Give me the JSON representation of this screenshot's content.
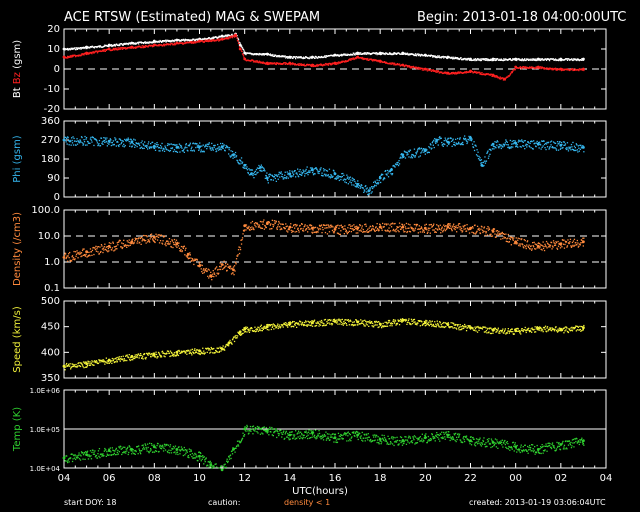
{
  "header": {
    "title": "ACE RTSW (Estimated) MAG & SWEPAM",
    "begin": "Begin: 2013-01-18 04:00:00UTC"
  },
  "footer": {
    "start_doy": "start DOY:  18",
    "caution": "caution:",
    "density_note": "density < 1",
    "created": "created: 2013-01-19 03:06:04UTC"
  },
  "colors": {
    "bt": "#ffffff",
    "bz": "#ff2020",
    "phi": "#35b6ee",
    "density": "#ff8a3d",
    "speed": "#f2f23a",
    "temp": "#2fd02f",
    "axis": "#ffffff"
  },
  "chart_data": {
    "type": "scatter",
    "x_axis": {
      "label": "UTC(hours)",
      "range": [
        4,
        28
      ],
      "tick_labels": [
        "04",
        "06",
        "08",
        "10",
        "12",
        "14",
        "16",
        "18",
        "20",
        "22",
        "00",
        "02",
        "04"
      ]
    },
    "panels": [
      {
        "id": "mag",
        "ylabel_parts": [
          {
            "text": "Bt",
            "color": "#ffffff"
          },
          {
            "text": "Bz",
            "color": "#ff2020"
          },
          {
            "text": "(gsm)",
            "color": "#ffffff"
          }
        ],
        "ylim": [
          -20,
          20
        ],
        "yticks": [
          "-20",
          "-10",
          "0",
          "10",
          "20"
        ],
        "dashed": [
          0
        ],
        "series": [
          {
            "name": "Bt",
            "color": "#ffffff",
            "x": [
              4,
              5,
              6,
              7,
              8,
              9,
              10,
              11,
              11.6,
              11.8,
              12,
              13,
              14,
              15,
              16,
              17,
              18,
              19,
              20,
              21,
              22,
              23,
              24,
              25,
              26,
              27
            ],
            "y": [
              10,
              11,
              12,
              13,
              14,
              14.5,
              15,
              16.5,
              17.5,
              12,
              8,
              7.5,
              6,
              6,
              7,
              8,
              8,
              8,
              7,
              6,
              5,
              5,
              5,
              5,
              5,
              5
            ]
          },
          {
            "name": "Bz",
            "color": "#ff2020",
            "x": [
              4,
              5,
              6,
              7,
              8,
              9,
              10,
              11,
              11.6,
              11.8,
              12,
              13,
              14,
              15,
              16,
              17,
              18,
              19,
              20,
              21,
              22,
              23,
              23.5,
              24,
              25,
              26,
              27
            ],
            "y": [
              6,
              8,
              10,
              11,
              12,
              13,
              14,
              15,
              17,
              10,
              5,
              3,
              3,
              2,
              3,
              6,
              4,
              2,
              0,
              -2,
              -1,
              -3,
              -5,
              1,
              1,
              0,
              0
            ]
          }
        ]
      },
      {
        "id": "phi",
        "ylabel_parts": [
          {
            "text": "Phi (gsm)",
            "color": "#35b6ee"
          }
        ],
        "ylim": [
          0,
          360
        ],
        "yticks": [
          "0",
          "90",
          "180",
          "270",
          "360"
        ],
        "series": [
          {
            "name": "Phi",
            "color": "#35b6ee",
            "x": [
              4,
              6,
              7,
              8,
              9,
              10,
              11,
              11.5,
              12,
              12.3,
              12.7,
              13,
              14,
              15,
              16,
              17,
              17.5,
              18,
              18.5,
              19,
              20,
              20.5,
              21,
              22,
              22.5,
              23,
              24,
              25,
              26,
              27
            ],
            "y": [
              270,
              265,
              260,
              240,
              235,
              238,
              238,
              200,
              150,
              110,
              140,
              90,
              110,
              130,
              110,
              60,
              30,
              90,
              130,
              200,
              220,
              270,
              260,
              280,
              150,
              250,
              255,
              250,
              245,
              235
            ]
          }
        ]
      },
      {
        "id": "density",
        "ylabel_parts": [
          {
            "text": "Density (/cm3)",
            "color": "#ff8a3d"
          }
        ],
        "ylim": [
          0.1,
          100
        ],
        "log": true,
        "yticks": [
          "0.1",
          "1.0",
          "10.0",
          "100.0"
        ],
        "dashed": [
          1,
          10
        ],
        "series": [
          {
            "name": "Density",
            "color": "#ff8a3d",
            "x": [
              4,
              5,
              6,
              7,
              8,
              9,
              9.5,
              10,
              10.5,
              11,
              11.5,
              12,
              13,
              14,
              15,
              16,
              17,
              18,
              19,
              20,
              21,
              22,
              23,
              24,
              25,
              26,
              27
            ],
            "y": [
              1.5,
              2.5,
              4,
              6,
              9,
              5,
              2,
              0.7,
              0.3,
              0.8,
              0.5,
              25,
              30,
              22,
              20,
              18,
              20,
              22,
              22,
              20,
              22,
              20,
              15,
              6,
              4,
              5,
              6
            ]
          }
        ]
      },
      {
        "id": "speed",
        "ylabel_parts": [
          {
            "text": "Speed (km/s)",
            "color": "#f2f23a"
          }
        ],
        "ylim": [
          350,
          500
        ],
        "yticks": [
          "350",
          "400",
          "450",
          "500"
        ],
        "series": [
          {
            "name": "Speed",
            "color": "#f2f23a",
            "x": [
              4,
              5,
              6,
              7,
              8,
              9,
              10,
              11,
              11.3,
              11.8,
              12,
              13,
              14,
              15,
              16,
              17,
              18,
              19,
              20,
              21,
              22,
              23,
              24,
              25,
              26,
              27
            ],
            "y": [
              373,
              378,
              385,
              392,
              396,
              400,
              403,
              407,
              418,
              440,
              445,
              450,
              455,
              458,
              460,
              459,
              455,
              462,
              458,
              454,
              448,
              443,
              442,
              447,
              445,
              448
            ]
          }
        ]
      },
      {
        "id": "temp",
        "ylabel_parts": [
          {
            "text": "Temp (K)",
            "color": "#2fd02f"
          }
        ],
        "ylim": [
          10000,
          1000000
        ],
        "log": true,
        "yticks": [
          "1.0E+04",
          "1.0E+05",
          "1.0E+06"
        ],
        "solid": [
          100000
        ],
        "series": [
          {
            "name": "Temp",
            "color": "#2fd02f",
            "x": [
              4,
              5,
              6,
              7,
              8,
              9,
              10,
              10.5,
              11,
              11.5,
              12,
              13,
              14,
              15,
              16,
              17,
              18,
              19,
              20,
              21,
              22,
              23,
              24,
              25,
              26,
              27
            ],
            "y": [
              18000,
              22000,
              28000,
              30000,
              35000,
              30000,
              20000,
              12000,
              9000,
              30000,
              100000,
              90000,
              70000,
              80000,
              60000,
              70000,
              55000,
              50000,
              60000,
              70000,
              50000,
              45000,
              35000,
              30000,
              40000,
              50000
            ]
          }
        ]
      }
    ]
  }
}
